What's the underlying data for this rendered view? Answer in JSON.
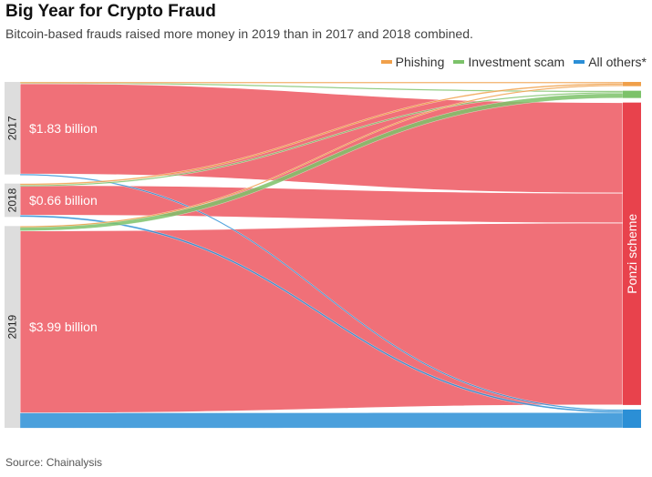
{
  "header": {
    "title": "Big Year for Crypto Fraud",
    "subtitle": "Bitcoin-based frauds raised more money in 2019 than in 2017 and 2018 combined."
  },
  "legend": {
    "items": [
      {
        "label": "Phishing",
        "color": "#f0a04a"
      },
      {
        "label": "Investment scam",
        "color": "#7cc26a"
      },
      {
        "label": "All others*",
        "color": "#2b8fd6"
      }
    ]
  },
  "source": "Source: Chainalysis",
  "colors": {
    "ponzi": "#f07078",
    "ponzi_bar": "#e8424c",
    "phishing": "#f0a04a",
    "investment": "#7cc26a",
    "others": "#2b8fd6",
    "year_bar": "#dddddd"
  },
  "chart_data": {
    "type": "sankey",
    "title": "Big Year for Crypto Fraud",
    "subtitle": "Bitcoin-based frauds raised more money in 2019 than in 2017 and 2018 combined.",
    "source_nodes": [
      {
        "id": "2017",
        "label": "2017",
        "total_label": "$1.83 billion",
        "value": 1.83
      },
      {
        "id": "2018",
        "label": "2018",
        "total_label": "$0.66 billion",
        "value": 0.66
      },
      {
        "id": "2019",
        "label": "2019",
        "total_label": "$3.99 billion",
        "value": 3.99
      }
    ],
    "target_nodes": [
      {
        "id": "phishing",
        "label": "Phishing"
      },
      {
        "id": "investment",
        "label": "Investment scam"
      },
      {
        "id": "ponzi",
        "label": "Ponzi scheme"
      },
      {
        "id": "others",
        "label": "All others*"
      }
    ],
    "flows": [
      {
        "source": "2017",
        "target": "phishing",
        "value": 0.01
      },
      {
        "source": "2017",
        "target": "investment",
        "value": 0.02
      },
      {
        "source": "2017",
        "target": "ponzi",
        "value": 1.79
      },
      {
        "source": "2017",
        "target": "others",
        "value": 0.01
      },
      {
        "source": "2018",
        "target": "phishing",
        "value": 0.03
      },
      {
        "source": "2018",
        "target": "investment",
        "value": 0.005
      },
      {
        "source": "2018",
        "target": "ponzi",
        "value": 0.59
      },
      {
        "source": "2018",
        "target": "others",
        "value": 0.035
      },
      {
        "source": "2019",
        "target": "phishing",
        "value": 0.005
      },
      {
        "source": "2019",
        "target": "investment",
        "value": 0.09
      },
      {
        "source": "2019",
        "target": "ponzi",
        "value": 3.6
      },
      {
        "source": "2019",
        "target": "others",
        "value": 0.3
      }
    ]
  }
}
